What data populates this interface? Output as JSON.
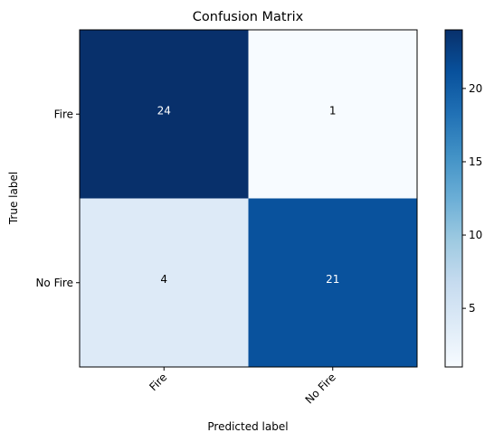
{
  "chart_data": {
    "type": "heatmap",
    "title": "Confusion Matrix",
    "xlabel": "Predicted label",
    "ylabel": "True label",
    "x_categories": [
      "Fire",
      "No Fire"
    ],
    "y_categories": [
      "Fire",
      "No Fire"
    ],
    "values": [
      [
        24,
        1
      ],
      [
        4,
        21
      ]
    ],
    "colormap": "Blues",
    "colorbar": {
      "range": [
        1,
        24
      ],
      "ticks": [
        5,
        10,
        15,
        20
      ],
      "tick_labels": [
        "5",
        "10",
        "15",
        "20"
      ]
    },
    "text_colors": {
      "light": "#ffffff",
      "dark": "#000000"
    },
    "x_tick_rotation": "45 degrees",
    "grid": false
  }
}
